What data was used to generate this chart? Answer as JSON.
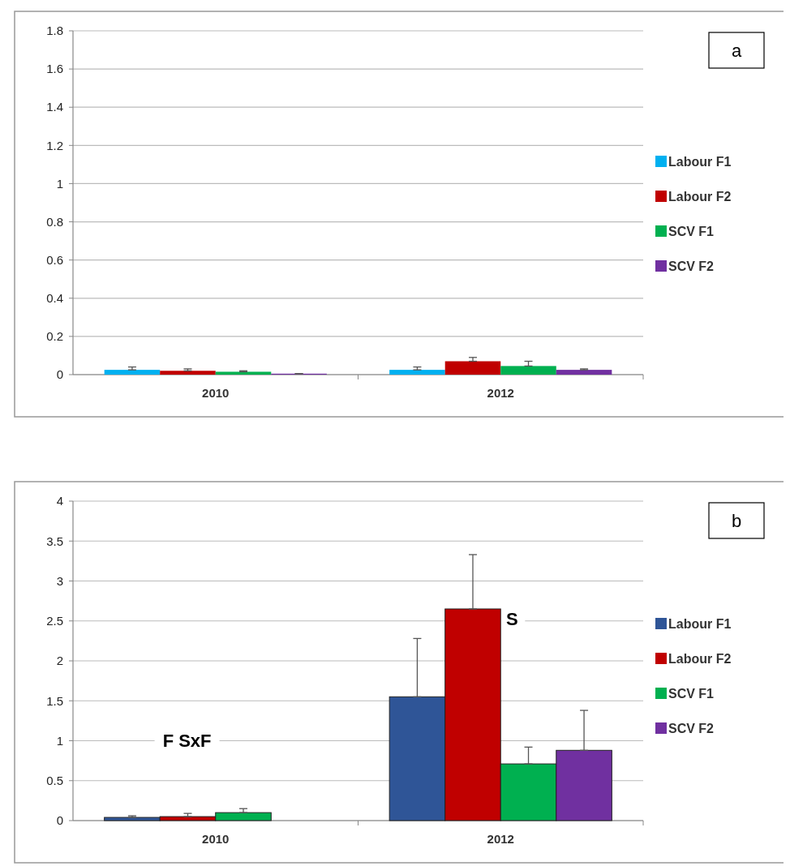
{
  "chart_data": [
    {
      "type": "bar",
      "categories": [
        "2010",
        "2012"
      ],
      "series": [
        {
          "name": "Labour F1",
          "color": "#00b0f0",
          "values": [
            0.025,
            0.025
          ],
          "errors": [
            [
              0.025,
              0.04
            ],
            [
              0.025,
              0.04
            ]
          ]
        },
        {
          "name": "Labour F2",
          "color": "#c00000",
          "values": [
            0.02,
            0.07
          ],
          "errors": [
            [
              0.02,
              0.03
            ],
            [
              0.07,
              0.09
            ]
          ]
        },
        {
          "name": "SCV F1",
          "color": "#00b050",
          "values": [
            0.015,
            0.045
          ],
          "errors": [
            [
              0.015,
              0.02
            ],
            [
              0.045,
              0.07
            ]
          ]
        },
        {
          "name": "SCV F2",
          "color": "#7030a0",
          "values": [
            0.005,
            0.025
          ],
          "errors": [
            [
              0.005,
              0.005
            ],
            [
              0.025,
              0.03
            ]
          ]
        }
      ],
      "ylim": [
        0,
        1.8
      ],
      "yticks": [
        0,
        0.2,
        0.4,
        0.6,
        0.8,
        1,
        1.2,
        1.4,
        1.6,
        1.8
      ],
      "grid": "y",
      "legend": "right",
      "annotations": [
        "a"
      ]
    },
    {
      "type": "bar",
      "categories": [
        "2010",
        "2012"
      ],
      "series": [
        {
          "name": "Labour F1",
          "color": "#2f5597",
          "values": [
            0.04,
            1.55
          ],
          "errors": [
            [
              0.04,
              0.06
            ],
            [
              1.55,
              2.28
            ]
          ]
        },
        {
          "name": "Labour F2",
          "color": "#c00000",
          "values": [
            0.05,
            2.65
          ],
          "errors": [
            [
              0.05,
              0.09
            ],
            [
              2.65,
              3.33
            ]
          ]
        },
        {
          "name": "SCV F1",
          "color": "#00b050",
          "values": [
            0.1,
            0.71
          ],
          "errors": [
            [
              0.1,
              0.15
            ],
            [
              0.71,
              0.92
            ]
          ]
        },
        {
          "name": "SCV F2",
          "color": "#7030a0",
          "values": [
            null,
            0.88
          ],
          "errors": [
            null,
            [
              0.88,
              1.38
            ]
          ]
        }
      ],
      "ylim": [
        0,
        4
      ],
      "yticks": [
        0,
        0.5,
        1,
        1.5,
        2,
        2.5,
        3,
        3.5,
        4
      ],
      "grid": "y",
      "legend": "right",
      "annotations": [
        "b",
        "F SxF",
        "S"
      ]
    }
  ]
}
